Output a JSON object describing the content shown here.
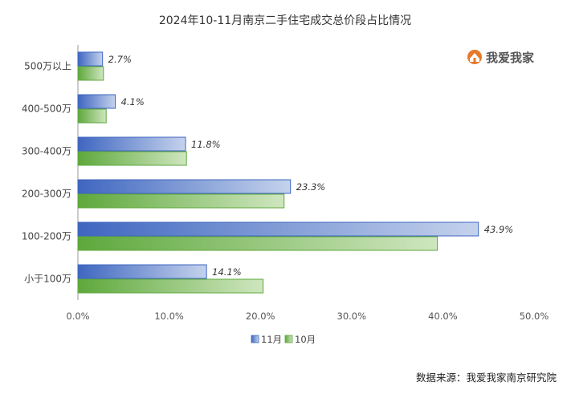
{
  "chart_data": {
    "type": "bar",
    "orientation": "horizontal",
    "title": "2024年10-11月南京二手住宅成交总价段占比情况",
    "categories": [
      "500万以上",
      "400-500万",
      "300-400万",
      "200-300万",
      "100-200万",
      "小于100万"
    ],
    "series": [
      {
        "name": "11月",
        "values": [
          2.7,
          4.1,
          11.8,
          23.3,
          43.9,
          14.1
        ],
        "labels": [
          "2.7%",
          "4.1%",
          "11.8%",
          "23.3%",
          "43.9%",
          "14.1%"
        ],
        "color": "#4a72c4"
      },
      {
        "name": "10月",
        "values": [
          2.8,
          3.1,
          11.9,
          22.6,
          39.4,
          20.3
        ],
        "color": "#6ab04c"
      }
    ],
    "xlim": [
      0,
      50
    ],
    "x_ticks": [
      "0.0%",
      "10.0%",
      "20.0%",
      "30.0%",
      "40.0%",
      "50.0%"
    ],
    "grid": false,
    "legend_position": "bottom"
  },
  "logo": {
    "text": "我爱我家",
    "accent": "#e8782a"
  },
  "source": "数据来源：我爱我家南京研究院"
}
